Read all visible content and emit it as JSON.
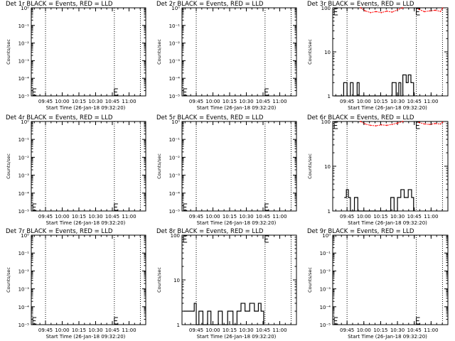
{
  "x_ticks": [
    "09:45",
    "10:00",
    "10:15",
    "10:30",
    "10:45",
    "11:00"
  ],
  "x_label": "Start Time (26-Jan-18 09:32:20)",
  "y_label": "Counts/sec",
  "colors": {
    "events": "#000000",
    "lld": "#ff0000",
    "frame": "#000000"
  },
  "chart_data": [
    {
      "type": "line",
      "title": "Det 1r BLACK = Events, RED = LLD",
      "yscale": "log",
      "ytick_labels": [
        "10⁰",
        "10⁻¹",
        "10⁻²",
        "10⁻³",
        "10⁻⁴",
        "10⁻⁵"
      ],
      "ylim_exp": [
        -5,
        0
      ],
      "vlines": [
        9.75,
        10.78,
        11.17
      ],
      "markers": [
        {
          "x": 9.56,
          "y": 1e-05
        },
        {
          "x": 10.78,
          "y": 1e-05
        }
      ],
      "events": [],
      "lld": []
    },
    {
      "type": "line",
      "title": "Det 2r BLACK = Events, RED = LLD",
      "yscale": "log",
      "ytick_labels": [
        "10⁰",
        "10⁻¹",
        "10⁻²",
        "10⁻³",
        "10⁻⁴",
        "10⁻⁵"
      ],
      "ylim_exp": [
        -5,
        0
      ],
      "vlines": [
        9.75,
        10.78,
        11.17
      ],
      "markers": [
        {
          "x": 9.56,
          "y": 1e-05
        },
        {
          "x": 10.78,
          "y": 1e-05
        }
      ],
      "events": [],
      "lld": []
    },
    {
      "type": "line",
      "title": "Det 3r BLACK = Events, RED = LLD",
      "yscale": "log",
      "ytick_labels": [
        "100",
        "10",
        "1"
      ],
      "ylim_exp": [
        0,
        2
      ],
      "vlines": [
        9.75,
        10.78,
        11.17
      ],
      "markers": [
        {
          "x": 9.56,
          "y": 100
        },
        {
          "x": 10.78,
          "y": 100
        }
      ],
      "events": [
        [
          9.56,
          1
        ],
        [
          9.69,
          1
        ],
        [
          9.7,
          2
        ],
        [
          9.74,
          2
        ],
        [
          9.75,
          1
        ],
        [
          9.8,
          2
        ],
        [
          9.84,
          1
        ],
        [
          9.9,
          2
        ],
        [
          9.93,
          1
        ],
        [
          10.35,
          1
        ],
        [
          10.42,
          2
        ],
        [
          10.48,
          1
        ],
        [
          10.52,
          2
        ],
        [
          10.55,
          1
        ],
        [
          10.58,
          3
        ],
        [
          10.63,
          2
        ],
        [
          10.66,
          3
        ],
        [
          10.7,
          2
        ],
        [
          10.74,
          1
        ]
      ],
      "lld": [
        [
          9.95,
          100
        ],
        [
          10.02,
          85
        ],
        [
          10.1,
          78
        ],
        [
          10.18,
          82
        ],
        [
          10.26,
          78
        ],
        [
          10.34,
          84
        ],
        [
          10.42,
          80
        ],
        [
          10.5,
          90
        ],
        [
          10.58,
          100
        ],
        [
          10.82,
          92
        ],
        [
          10.9,
          82
        ],
        [
          10.98,
          85
        ],
        [
          11.06,
          88
        ],
        [
          11.14,
          83
        ],
        [
          11.17,
          98
        ]
      ]
    },
    {
      "type": "line",
      "title": "Det 4r BLACK = Events, RED = LLD",
      "yscale": "log",
      "ytick_labels": [
        "10⁰",
        "10⁻¹",
        "10⁻²",
        "10⁻³",
        "10⁻⁴",
        "10⁻⁵"
      ],
      "ylim_exp": [
        -5,
        0
      ],
      "vlines": [
        9.75,
        10.78,
        11.17
      ],
      "markers": [
        {
          "x": 9.56,
          "y": 1e-05
        },
        {
          "x": 10.78,
          "y": 1e-05
        }
      ],
      "events": [],
      "lld": []
    },
    {
      "type": "line",
      "title": "Det 5r BLACK = Events, RED = LLD",
      "yscale": "log",
      "ytick_labels": [
        "10⁰",
        "10⁻¹",
        "10⁻²",
        "10⁻³",
        "10⁻⁴",
        "10⁻⁵"
      ],
      "ylim_exp": [
        -5,
        0
      ],
      "vlines": [
        9.75,
        10.78,
        11.17
      ],
      "markers": [
        {
          "x": 9.56,
          "y": 1e-05
        },
        {
          "x": 10.78,
          "y": 1e-05
        }
      ],
      "events": [],
      "lld": []
    },
    {
      "type": "line",
      "title": "Det 6r BLACK = Events, RED = LLD",
      "yscale": "log",
      "ytick_labels": [
        "100",
        "10",
        "1"
      ],
      "ylim_exp": [
        0,
        2
      ],
      "vlines": [
        9.75,
        10.78,
        11.17
      ],
      "markers": [
        {
          "x": 9.56,
          "y": 100
        },
        {
          "x": 10.78,
          "y": 100
        }
      ],
      "events": [
        [
          9.71,
          2
        ],
        [
          9.74,
          3
        ],
        [
          9.77,
          2
        ],
        [
          9.8,
          1
        ],
        [
          9.86,
          2
        ],
        [
          9.91,
          1
        ],
        [
          10.35,
          1
        ],
        [
          10.4,
          2
        ],
        [
          10.45,
          1
        ],
        [
          10.5,
          2
        ],
        [
          10.55,
          3
        ],
        [
          10.6,
          2
        ],
        [
          10.66,
          3
        ],
        [
          10.71,
          2
        ],
        [
          10.74,
          1
        ]
      ],
      "lld": [
        [
          9.95,
          100
        ],
        [
          10.02,
          88
        ],
        [
          10.1,
          82
        ],
        [
          10.18,
          80
        ],
        [
          10.26,
          84
        ],
        [
          10.34,
          82
        ],
        [
          10.42,
          86
        ],
        [
          10.5,
          92
        ],
        [
          10.58,
          100
        ],
        [
          10.82,
          95
        ],
        [
          10.9,
          88
        ],
        [
          10.98,
          86
        ],
        [
          11.06,
          90
        ],
        [
          11.14,
          88
        ],
        [
          11.17,
          96
        ]
      ]
    },
    {
      "type": "line",
      "title": "Det 7r BLACK = Events, RED = LLD",
      "yscale": "log",
      "ytick_labels": [
        "10⁰",
        "10⁻¹",
        "10⁻²",
        "10⁻³",
        "10⁻⁴",
        "10⁻⁵"
      ],
      "ylim_exp": [
        -5,
        0
      ],
      "vlines": [
        9.75,
        10.78,
        11.17
      ],
      "markers": [
        {
          "x": 9.56,
          "y": 1e-05
        },
        {
          "x": 10.78,
          "y": 1e-05
        }
      ],
      "events": [],
      "lld": []
    },
    {
      "type": "line",
      "title": "Det 8r BLACK = Events, RED = LLD",
      "yscale": "log",
      "ytick_labels": [
        "100",
        "10",
        "1"
      ],
      "ylim_exp": [
        0,
        2
      ],
      "vlines": [
        9.75,
        10.78,
        11.17
      ],
      "markers": [
        {
          "x": 9.56,
          "y": 100
        },
        {
          "x": 10.78,
          "y": 100
        }
      ],
      "events": [
        [
          9.56,
          2
        ],
        [
          9.7,
          2
        ],
        [
          9.72,
          3
        ],
        [
          9.75,
          1
        ],
        [
          9.79,
          2
        ],
        [
          9.85,
          1
        ],
        [
          9.92,
          2
        ],
        [
          9.97,
          1
        ],
        [
          10.08,
          2
        ],
        [
          10.14,
          1
        ],
        [
          10.22,
          2
        ],
        [
          10.3,
          1
        ],
        [
          10.36,
          2
        ],
        [
          10.42,
          3
        ],
        [
          10.48,
          2
        ],
        [
          10.55,
          3
        ],
        [
          10.62,
          2
        ],
        [
          10.68,
          3
        ],
        [
          10.72,
          2
        ],
        [
          10.76,
          1
        ]
      ],
      "lld": []
    },
    {
      "type": "line",
      "title": "Det 9r BLACK = Events, RED = LLD",
      "yscale": "log",
      "ytick_labels": [
        "10⁰",
        "10⁻¹",
        "10⁻²",
        "10⁻³",
        "10⁻⁴",
        "10⁻⁵"
      ],
      "ylim_exp": [
        -5,
        0
      ],
      "vlines": [
        9.75,
        10.78,
        11.17
      ],
      "markers": [
        {
          "x": 9.56,
          "y": 1e-05
        },
        {
          "x": 10.78,
          "y": 1e-05
        }
      ],
      "events": [],
      "lld": []
    }
  ]
}
